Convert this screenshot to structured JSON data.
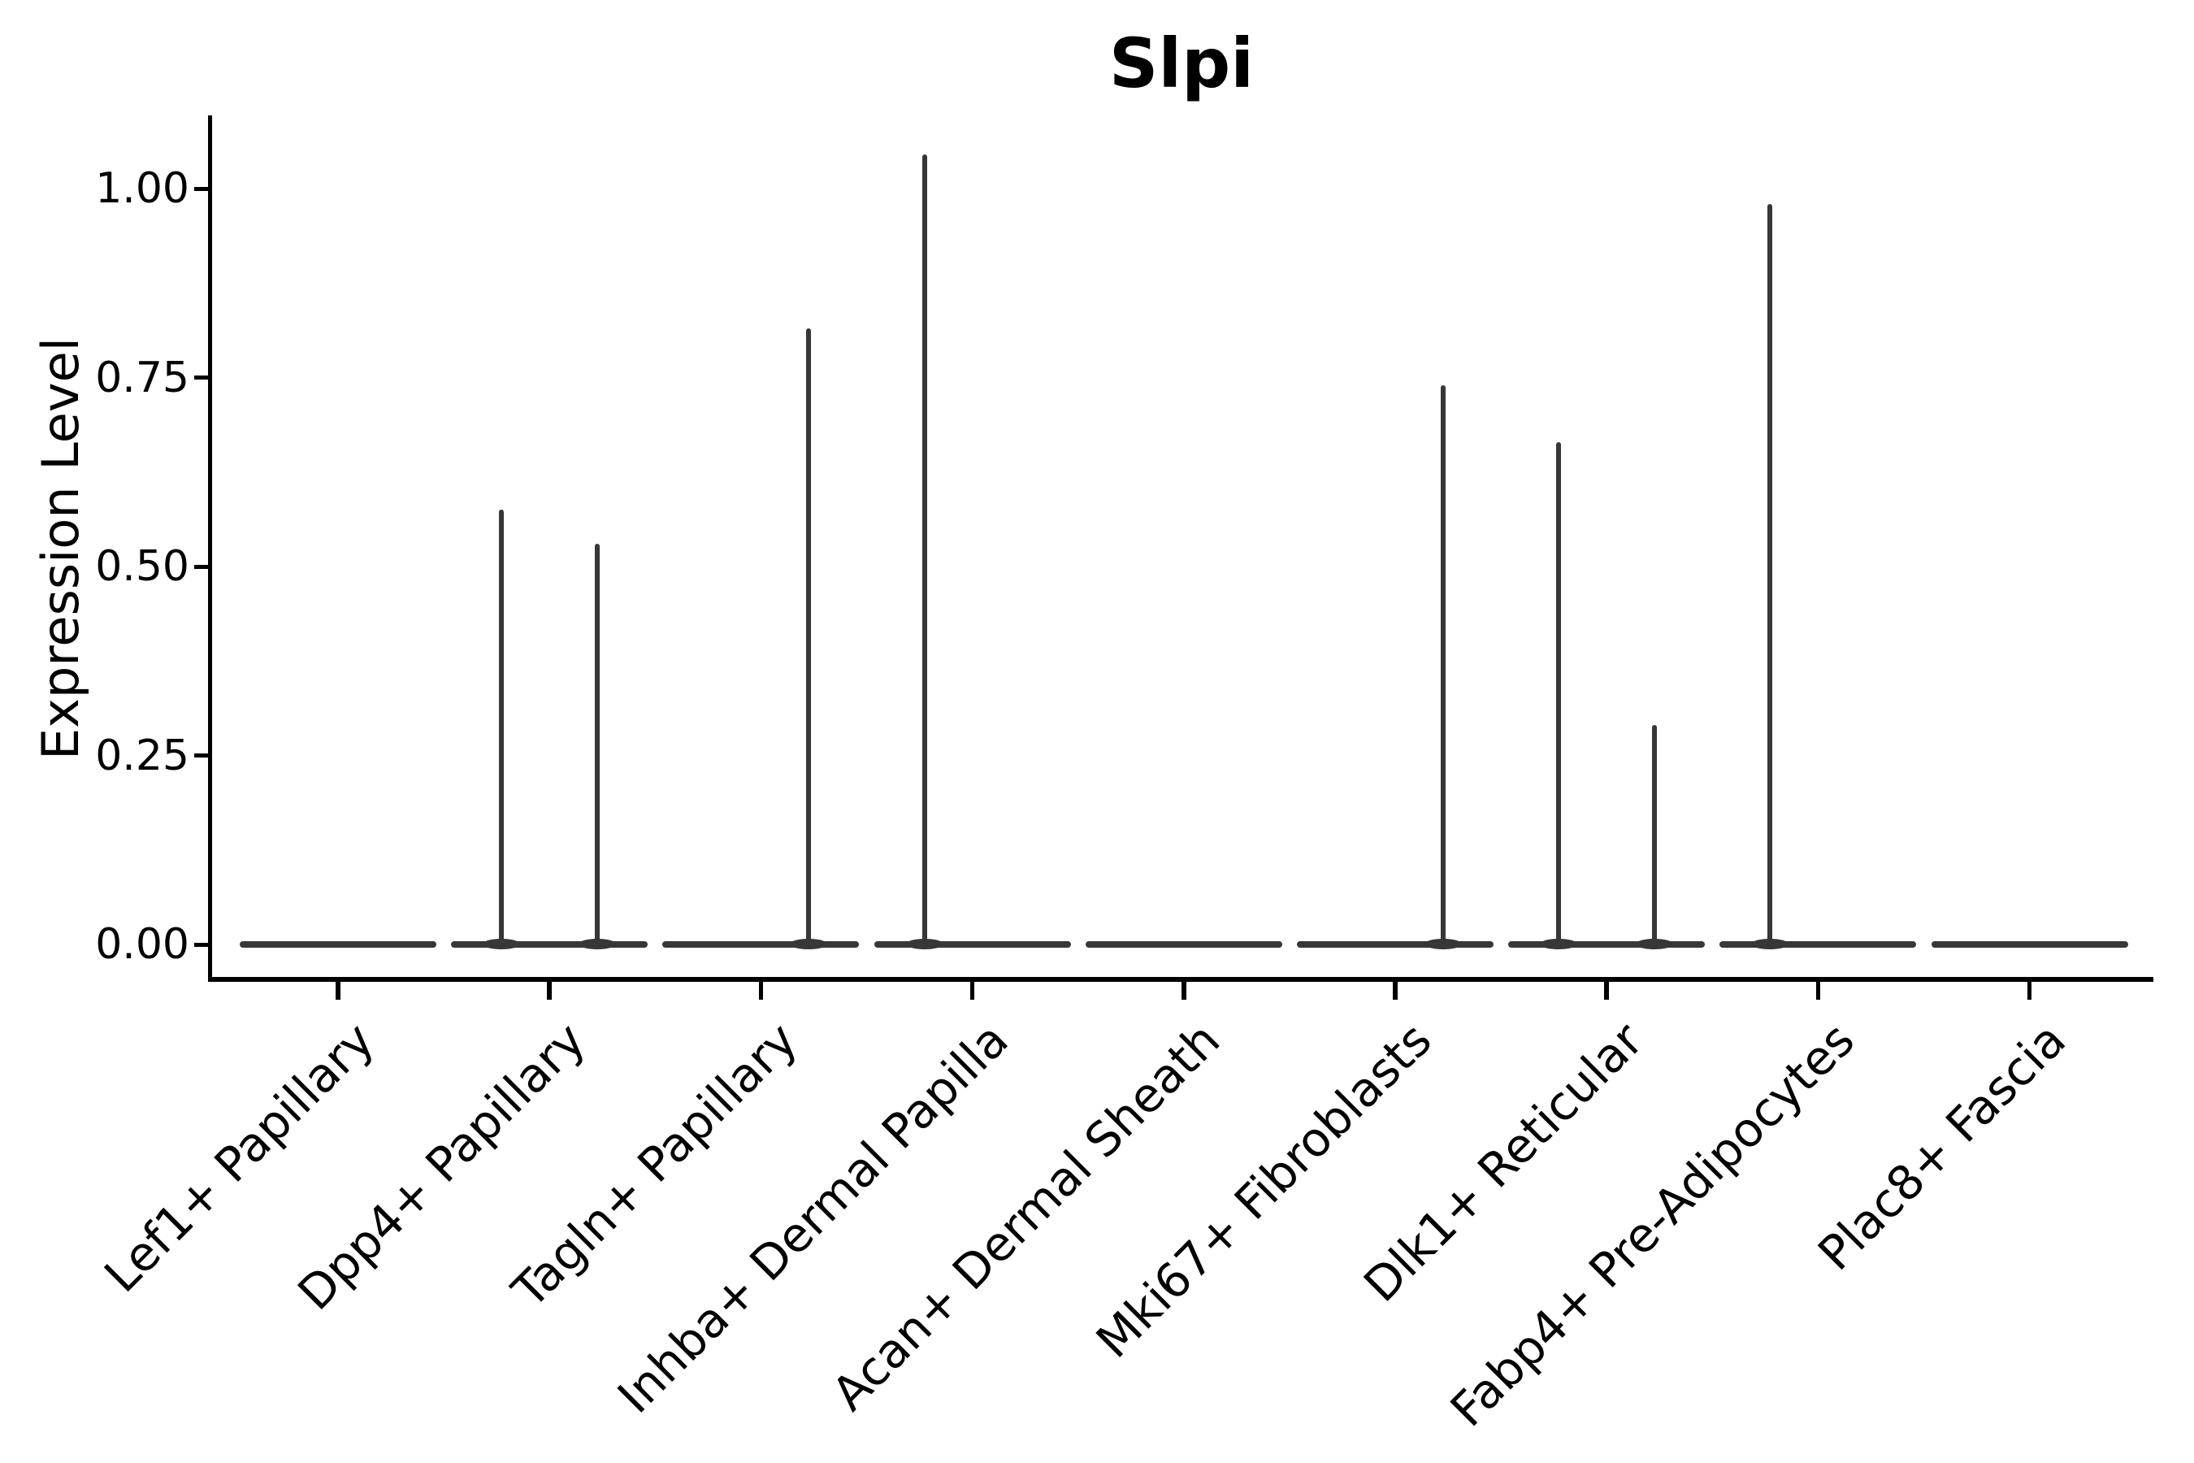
{
  "chart_data": {
    "type": "violin",
    "title": "Slpi",
    "ylabel": "Expression Level",
    "xlabel": "",
    "ylim": [
      -0.048,
      1.097
    ],
    "grid": false,
    "legend": "none",
    "yticks": [
      {
        "value": 0.0,
        "label": "0.00"
      },
      {
        "value": 0.25,
        "label": "0.25"
      },
      {
        "value": 0.5,
        "label": "0.50"
      },
      {
        "value": 0.75,
        "label": "0.75"
      },
      {
        "value": 1.0,
        "label": "1.00"
      }
    ],
    "categories": [
      "Lef1+ Papillary",
      "Dpp4+ Papillary",
      "Tagln+ Papillary",
      "Inhba+ Dermal Papilla",
      "Acan+ Dermal Sheath",
      "Mki67+ Fibroblasts",
      "Dlk1+ Reticular",
      "Fabp4+ Pre-Adipocytes",
      "Plac8+ Fascia"
    ],
    "baseline_value": 0.0,
    "violins": [
      {
        "category": "Lef1+ Papillary",
        "spikes": []
      },
      {
        "category": "Dpp4+ Papillary",
        "spikes": [
          {
            "side": "left",
            "peak": 0.575
          },
          {
            "side": "right",
            "peak": 0.53
          }
        ]
      },
      {
        "category": "Tagln+ Papillary",
        "spikes": [
          {
            "side": "right",
            "peak": 0.815
          }
        ]
      },
      {
        "category": "Inhba+ Dermal Papilla",
        "spikes": [
          {
            "side": "left",
            "peak": 1.045
          }
        ]
      },
      {
        "category": "Acan+ Dermal Sheath",
        "spikes": []
      },
      {
        "category": "Mki67+ Fibroblasts",
        "spikes": [
          {
            "side": "right",
            "peak": 0.74
          }
        ]
      },
      {
        "category": "Dlk1+ Reticular",
        "spikes": [
          {
            "side": "left",
            "peak": 0.665
          },
          {
            "side": "right",
            "peak": 0.29
          }
        ]
      },
      {
        "category": "Fabp4+ Pre-Adipocytes",
        "spikes": [
          {
            "side": "left",
            "peak": 0.98
          }
        ]
      },
      {
        "category": "Plac8+ Fascia",
        "spikes": []
      }
    ],
    "violin_color": "#373737",
    "axis_color": "#000000",
    "text_color": "#000000",
    "background_color": "#ffffff"
  }
}
